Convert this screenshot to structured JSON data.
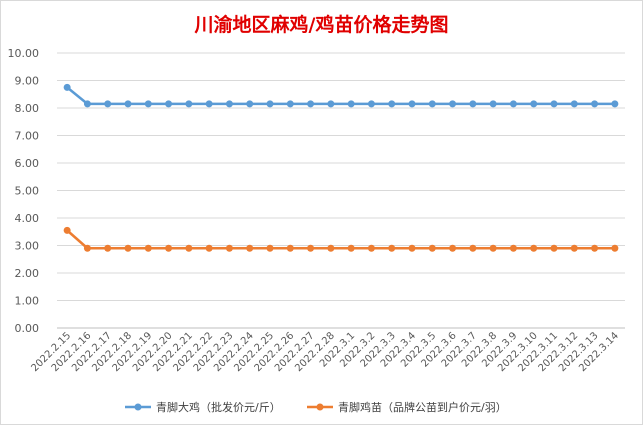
{
  "chart_data": {
    "type": "line",
    "title": "川渝地区麻鸡/鸡苗价格走势图",
    "ylim": [
      0,
      10
    ],
    "yticks": [
      "0.00",
      "1.00",
      "2.00",
      "3.00",
      "4.00",
      "5.00",
      "6.00",
      "7.00",
      "8.00",
      "9.00",
      "10.00"
    ],
    "grid": true,
    "legend_position": "bottom",
    "categories": [
      "2022.2.15",
      "2022.2.16",
      "2022.2.17",
      "2022.2.18",
      "2022.2.19",
      "2022.2.20",
      "2022.2.21",
      "2022.2.22",
      "2022.2.23",
      "2022.2.24",
      "2022.2.25",
      "2022.2.26",
      "2022.2.27",
      "2022.2.28",
      "2022.3.1",
      "2022.3.2",
      "2022.3.3",
      "2022.3.4",
      "2022.3.5",
      "2022.3.6",
      "2022.3.7",
      "2022.3.8",
      "2022.3.9",
      "2022.3.10",
      "2022.3.11",
      "2022.3.12",
      "2022.3.13",
      "2022.3.14"
    ],
    "series": [
      {
        "name": "青脚大鸡（批发价元/斤）",
        "color": "#5b9bd5",
        "values": [
          8.75,
          8.15,
          8.15,
          8.15,
          8.15,
          8.15,
          8.15,
          8.15,
          8.15,
          8.15,
          8.15,
          8.15,
          8.15,
          8.15,
          8.15,
          8.15,
          8.15,
          8.15,
          8.15,
          8.15,
          8.15,
          8.15,
          8.15,
          8.15,
          8.15,
          8.15,
          8.15,
          8.15
        ]
      },
      {
        "name": "青脚鸡苗（品牌公苗到户价元/羽）",
        "color": "#ed7d31",
        "values": [
          3.55,
          2.9,
          2.9,
          2.9,
          2.9,
          2.9,
          2.9,
          2.9,
          2.9,
          2.9,
          2.9,
          2.9,
          2.9,
          2.9,
          2.9,
          2.9,
          2.9,
          2.9,
          2.9,
          2.9,
          2.9,
          2.9,
          2.9,
          2.9,
          2.9,
          2.9,
          2.9,
          2.9
        ]
      }
    ]
  }
}
